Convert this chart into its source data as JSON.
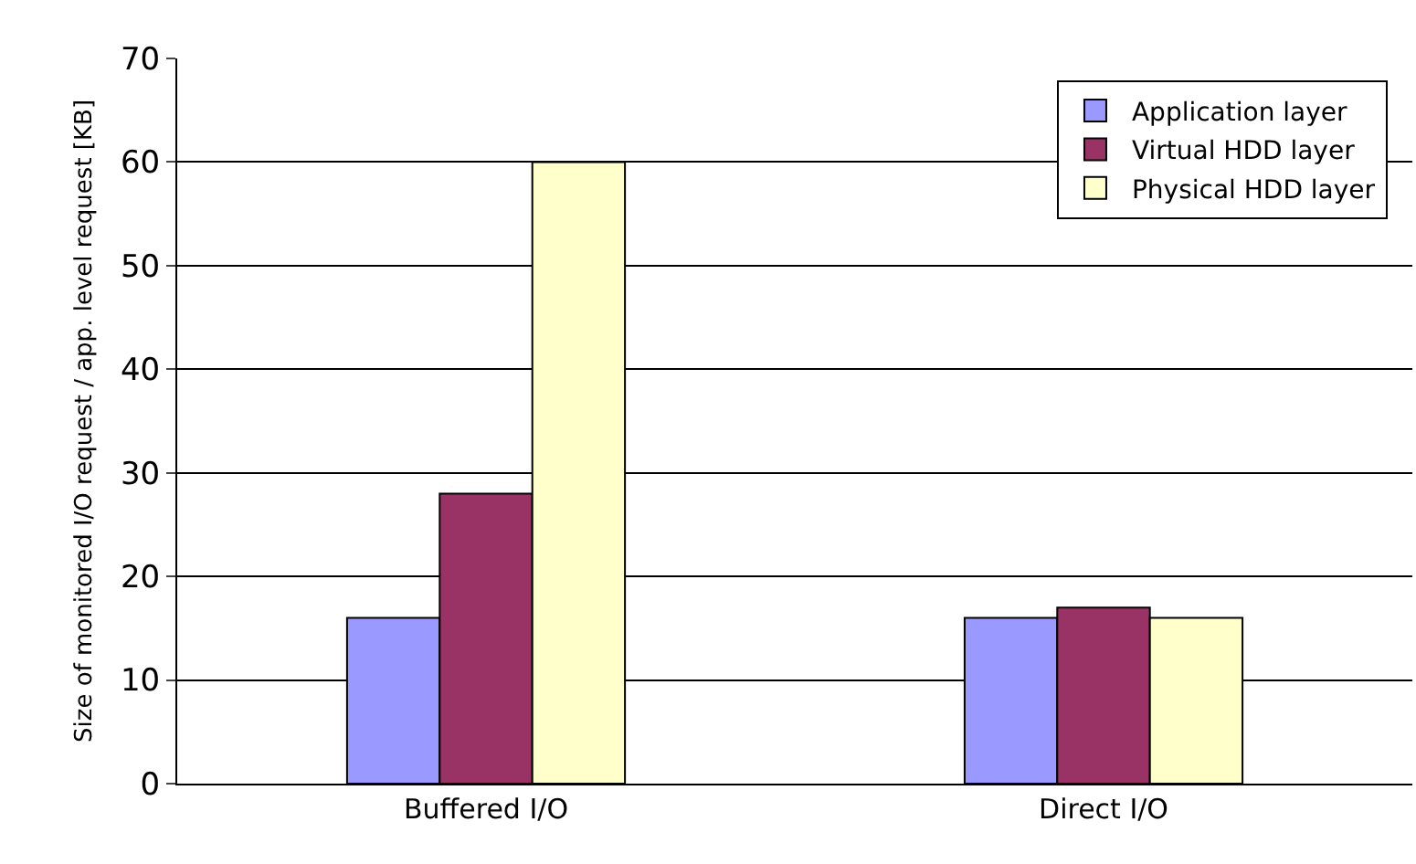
{
  "chart_data": {
    "type": "bar",
    "ylabel": "Size of monitored I/O request / app. level request [KB]",
    "categories": [
      "Buffered I/O",
      "Direct I/O"
    ],
    "series": [
      {
        "name": "Application layer",
        "color": "#9999ff",
        "values": [
          16,
          16
        ]
      },
      {
        "name": "Virtual HDD layer",
        "color": "#993366",
        "values": [
          28,
          17
        ]
      },
      {
        "name": "Physical HDD layer",
        "color": "#ffffcc",
        "values": [
          60,
          16
        ]
      }
    ],
    "ylim": [
      0,
      70
    ],
    "yticks": [
      0,
      10,
      20,
      30,
      40,
      50,
      60,
      70
    ],
    "grid": "y",
    "legend": "top right"
  }
}
